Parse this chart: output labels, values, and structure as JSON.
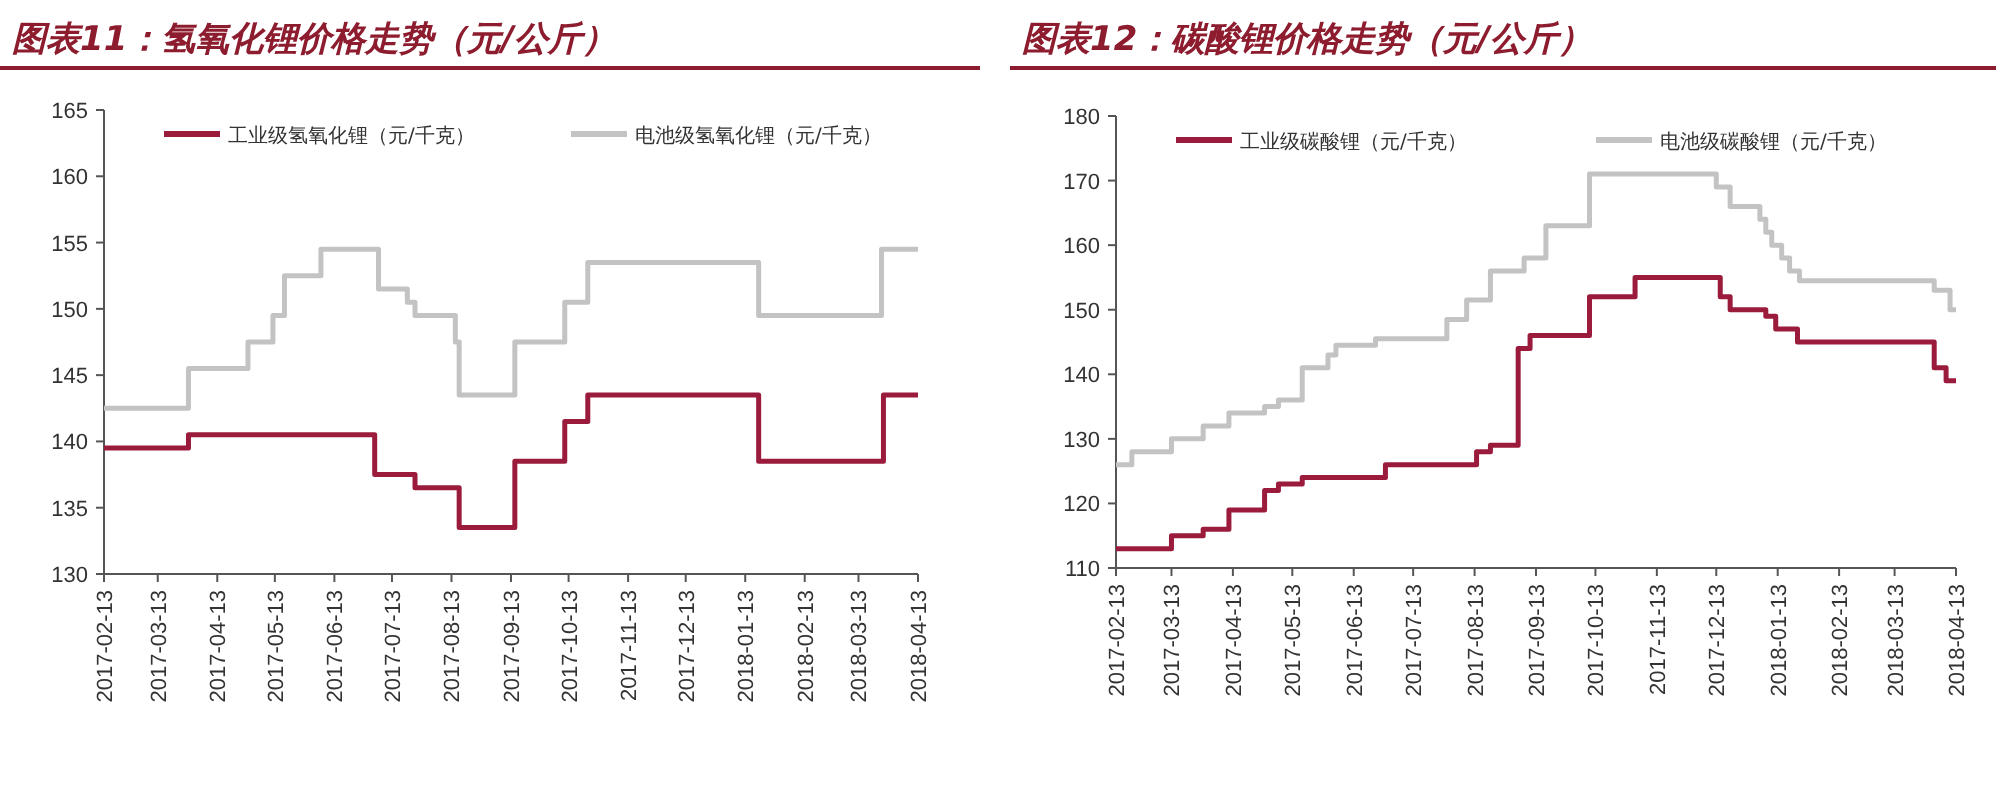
{
  "chart_data": [
    {
      "type": "step",
      "title": "图表11：氢氧化锂价格走势（元/公斤）",
      "legend": "top",
      "grid": false,
      "line_style": "solid",
      "xlim": [
        "2017-02-13",
        "2018-04-13"
      ],
      "xticks": [
        "2017-02-13",
        "2017-03-13",
        "2017-04-13",
        "2017-05-13",
        "2017-06-13",
        "2017-07-13",
        "2017-08-13",
        "2017-09-13",
        "2017-10-13",
        "2017-11-13",
        "2017-12-13",
        "2018-01-13",
        "2018-02-13",
        "2018-03-13",
        "2018-04-13"
      ],
      "ylim": [
        130,
        165
      ],
      "yticks": [
        130,
        135,
        140,
        145,
        150,
        155,
        160,
        165
      ],
      "series": [
        {
          "name": "工业级氢氧化锂（元/千克）",
          "color": "#9b1b3c",
          "x": [
            "2017-02-13",
            "2017-03-29",
            "2017-07-04",
            "2017-07-25",
            "2017-08-17",
            "2017-09-15",
            "2017-10-11",
            "2017-10-23",
            "2018-01-20",
            "2018-03-26",
            "2018-04-13"
          ],
          "values": [
            139.5,
            140.5,
            137.5,
            136.5,
            133.5,
            138.5,
            141.5,
            143.5,
            138.5,
            143.5,
            143.5
          ]
        },
        {
          "name": "电池级氢氧化锂（元/千克）",
          "color": "#c3c3c3",
          "x": [
            "2017-02-13",
            "2017-03-29",
            "2017-04-29",
            "2017-05-12",
            "2017-05-18",
            "2017-06-06",
            "2017-07-06",
            "2017-07-21",
            "2017-07-25",
            "2017-08-15",
            "2017-08-17",
            "2017-09-15",
            "2017-10-11",
            "2017-10-23",
            "2018-01-20",
            "2018-03-25",
            "2018-04-13"
          ],
          "values": [
            142.5,
            145.5,
            147.5,
            149.5,
            152.5,
            154.5,
            151.5,
            150.5,
            149.5,
            147.5,
            143.5,
            147.5,
            150.5,
            153.5,
            149.5,
            154.5,
            154.5
          ]
        }
      ]
    },
    {
      "type": "step",
      "title": "图表12：碳酸锂价格走势（元/公斤）",
      "legend": "top",
      "grid": false,
      "line_style": "solid",
      "xlim": [
        "2017-02-13",
        "2018-04-13"
      ],
      "xticks": [
        "2017-02-13",
        "2017-03-13",
        "2017-04-13",
        "2017-05-13",
        "2017-06-13",
        "2017-07-13",
        "2017-08-13",
        "2017-09-13",
        "2017-10-13",
        "2017-11-13",
        "2017-12-13",
        "2018-01-13",
        "2018-02-13",
        "2018-03-13",
        "2018-04-13"
      ],
      "ylim": [
        110,
        180
      ],
      "yticks": [
        110,
        120,
        130,
        140,
        150,
        160,
        170,
        180
      ],
      "series": [
        {
          "name": "工业级碳酸锂（元/千克）",
          "color": "#9b1b3c",
          "x": [
            "2017-02-13",
            "2017-03-13",
            "2017-03-29",
            "2017-04-11",
            "2017-04-29",
            "2017-05-06",
            "2017-05-18",
            "2017-06-29",
            "2017-08-14",
            "2017-08-21",
            "2017-09-04",
            "2017-09-10",
            "2017-10-10",
            "2017-11-02",
            "2017-12-15",
            "2017-12-20",
            "2018-01-07",
            "2018-01-12",
            "2018-01-23",
            "2018-04-02",
            "2018-04-08",
            "2018-04-13"
          ],
          "values": [
            113,
            115,
            116,
            119,
            122,
            123,
            124,
            126,
            128,
            129,
            144,
            146,
            152,
            155,
            152,
            150,
            149,
            147,
            145,
            141,
            139,
            139
          ]
        },
        {
          "name": "电池级碳酸锂（元/千克）",
          "color": "#c3c3c3",
          "x": [
            "2017-02-13",
            "2017-02-21",
            "2017-03-13",
            "2017-03-29",
            "2017-04-11",
            "2017-04-29",
            "2017-05-06",
            "2017-05-18",
            "2017-05-31",
            "2017-06-04",
            "2017-06-24",
            "2017-07-30",
            "2017-08-09",
            "2017-08-21",
            "2017-09-07",
            "2017-09-18",
            "2017-10-10",
            "2017-12-13",
            "2017-12-20",
            "2018-01-04",
            "2018-01-07",
            "2018-01-10",
            "2018-01-15",
            "2018-01-19",
            "2018-01-24",
            "2018-04-02",
            "2018-04-10",
            "2018-04-13"
          ],
          "values": [
            126,
            128,
            130,
            132,
            134,
            135,
            136,
            141,
            143,
            144.5,
            145.5,
            148.5,
            151.5,
            156,
            158,
            163,
            171,
            169,
            166,
            164,
            162,
            160,
            158,
            156,
            154.5,
            153,
            150,
            150
          ]
        }
      ]
    }
  ]
}
